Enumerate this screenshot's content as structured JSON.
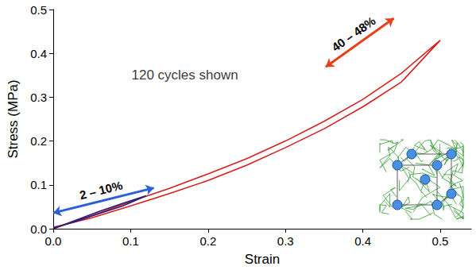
{
  "chart_data": {
    "type": "line",
    "xlabel": "Strain",
    "ylabel": "Stress (MPa)",
    "xlim": [
      0,
      0.54
    ],
    "xticks": [
      {
        "value": 0,
        "label": "0.0"
      },
      0.1,
      0.2,
      0.3,
      0.4,
      0.5
    ],
    "ylim": [
      0,
      0.5
    ],
    "yticks": [
      {
        "value": 0,
        "label": "0.0"
      },
      0.1,
      0.2,
      0.3,
      0.4,
      0.5
    ],
    "grid": false,
    "series": [
      {
        "color": "#d81e1e",
        "x": [
          0,
          0.05,
          0.1,
          0.15,
          0.2,
          0.25,
          0.3,
          0.35,
          0.4,
          0.45,
          0.5,
          0.45,
          0.4,
          0.35,
          0.3,
          0.25,
          0.2,
          0.15,
          0.1,
          0.05,
          0
        ],
        "values": [
          0,
          0.03,
          0.062,
          0.092,
          0.125,
          0.16,
          0.2,
          0.245,
          0.295,
          0.355,
          0.43,
          0.335,
          0.278,
          0.228,
          0.185,
          0.145,
          0.11,
          0.08,
          0.052,
          0.025,
          0.003
        ]
      },
      {
        "color": "#2b1d78",
        "x": [
          0,
          0.03,
          0.06,
          0.09,
          0.12,
          0.09,
          0.06,
          0.03,
          0
        ],
        "values": [
          0,
          0.02,
          0.04,
          0.058,
          0.075,
          0.052,
          0.035,
          0.017,
          0.002
        ]
      }
    ],
    "annotations": [
      {
        "text": "120 cycles shown",
        "x": 0.17,
        "y": 0.35
      }
    ],
    "arrows": [
      {
        "text": "2 – 10%",
        "from": [
          0,
          0.036
        ],
        "to": [
          0.13,
          0.093
        ],
        "color": "#2b5fd9"
      },
      {
        "text": "40 – 48%",
        "from": [
          0.352,
          0.369
        ],
        "to": [
          0.44,
          0.48
        ],
        "color": "#e8401c"
      }
    ]
  }
}
